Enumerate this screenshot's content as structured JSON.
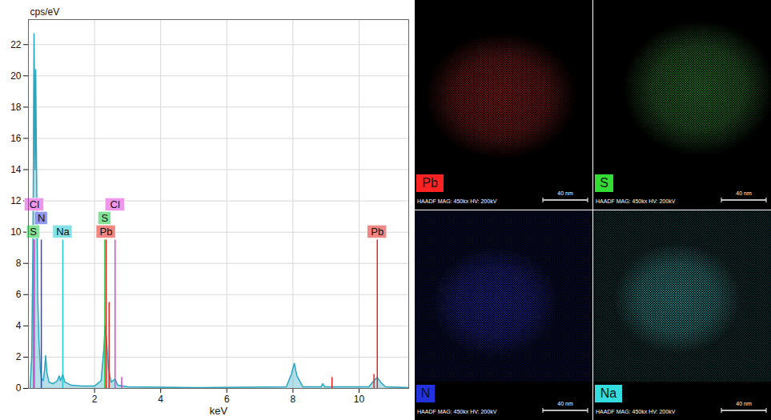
{
  "chart_data": {
    "type": "line",
    "x_label": "keV",
    "y_label": "cps/eV",
    "xlim": [
      0,
      11.5
    ],
    "ylim": [
      0,
      23.6
    ],
    "xticks": [
      2,
      4,
      6,
      8,
      10
    ],
    "yticks": [
      0,
      2,
      4,
      6,
      8,
      10,
      12,
      14,
      16,
      18,
      20,
      22
    ],
    "grid": true,
    "series": [
      {
        "color": "#2ba6bf",
        "x": [
          0.05,
          0.1,
          0.14,
          0.17,
          0.2,
          0.22,
          0.25,
          0.28,
          0.32,
          0.36,
          0.4,
          0.45,
          0.49,
          0.52,
          0.56,
          0.62,
          0.75,
          0.88,
          0.93,
          0.97,
          1.04,
          1.1,
          1.3,
          1.6,
          2.0,
          2.2,
          2.28,
          2.32,
          2.36,
          2.42,
          2.5,
          2.62,
          2.7,
          3.0,
          5.0,
          7.8,
          7.95,
          8.04,
          8.12,
          8.3,
          8.85,
          8.9,
          8.96,
          9.5,
          10.3,
          10.45,
          10.55,
          10.65,
          10.8,
          11.5
        ],
        "values": [
          0,
          2,
          10,
          22.7,
          14,
          20.4,
          13,
          6,
          3,
          1.2,
          0.6,
          0.5,
          1.2,
          2.1,
          1.0,
          0.4,
          0.3,
          0.5,
          0.8,
          0.5,
          0.9,
          0.4,
          0.2,
          0.15,
          0.15,
          0.5,
          2.5,
          4.0,
          3.2,
          1.3,
          0.4,
          0.6,
          0.2,
          0.1,
          0.05,
          0.1,
          0.9,
          1.6,
          0.8,
          0.1,
          0.1,
          0.3,
          0.1,
          0.1,
          0.1,
          0.5,
          0.7,
          0.4,
          0.1,
          0.05
        ]
      }
    ],
    "annotations": [
      {
        "text": "S",
        "x": 0.15,
        "y": 9.5,
        "color": "#22cc44"
      },
      {
        "text": "N",
        "x": 0.39,
        "y": 9.5,
        "color": "#3344dd"
      },
      {
        "text": "Cl",
        "x": 0.18,
        "y": 9.5,
        "color": "#e040d8"
      },
      {
        "text": "Na",
        "x": 1.04,
        "y": 9.5,
        "color": "#22c8d0"
      },
      {
        "text": "Pb",
        "x": 2.35,
        "y": 9.5,
        "color": "#e8231c"
      },
      {
        "text": "S",
        "x": 2.31,
        "y": 9.5,
        "color": "#22cc44"
      },
      {
        "text": "Cl",
        "x": 2.62,
        "y": 9.5,
        "color": "#e040d8"
      },
      {
        "text": "Pb",
        "x": 10.55,
        "y": 9.5,
        "color": "#e8231c"
      },
      {
        "x": 2.44,
        "y": 5.5,
        "color": "#e8231c"
      },
      {
        "x": 2.82,
        "y": 0.7,
        "color": "#e040d8"
      },
      {
        "x": 9.18,
        "y": 0.7,
        "color": "#e8231c"
      },
      {
        "x": 10.45,
        "y": 0.9,
        "color": "#e8231c"
      }
    ]
  },
  "maps": [
    {
      "element": "Pb",
      "color": "#ff2222",
      "caption": "HAADF MAG: 450kx HV: 200kV",
      "scale_bar": "40 nm"
    },
    {
      "element": "S",
      "color": "#33dd33",
      "caption": "HAADF MAG: 450kx HV: 200kV",
      "scale_bar": "40 nm"
    },
    {
      "element": "N",
      "color": "#2233dd",
      "caption": "HAADF MAG: 450kx HV: 200kV",
      "scale_bar": "40 nm"
    },
    {
      "element": "Na",
      "color": "#33dddd",
      "caption": "HAADF MAG: 450kx HV: 200kV",
      "scale_bar": "40 nm"
    }
  ]
}
